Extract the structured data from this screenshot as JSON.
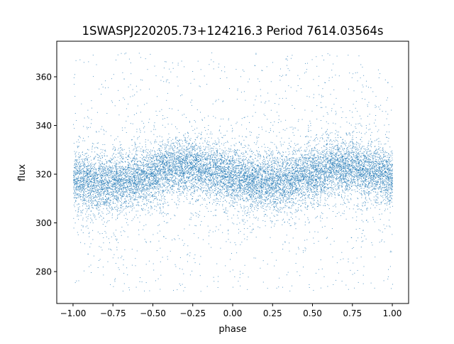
{
  "chart_data": {
    "type": "scatter",
    "title": "1SWASPJ220205.73+124216.3 Period 7614.03564s",
    "xlabel": "phase",
    "ylabel": "flux",
    "xlim": [
      -1.102,
      1.102
    ],
    "ylim": [
      266.9,
      374.6
    ],
    "xticks": [
      -1.0,
      -0.75,
      -0.5,
      -0.25,
      0.0,
      0.25,
      0.5,
      0.75,
      1.0
    ],
    "xtick_labels": [
      "−1.00",
      "−0.75",
      "−0.50",
      "−0.25",
      "0.00",
      "0.25",
      "0.50",
      "0.75",
      "1.00"
    ],
    "yticks": [
      280,
      300,
      320,
      340,
      360
    ],
    "ytick_labels": [
      "280",
      "300",
      "320",
      "340",
      "360"
    ],
    "grid": false,
    "legend": "none",
    "marker_color": "#1f77b4",
    "data_range": {
      "phase": [
        -1.0,
        1.0
      ],
      "flux": [
        272,
        370
      ]
    },
    "binned_trend": {
      "phase": [
        -1.0,
        -0.875,
        -0.75,
        -0.625,
        -0.5,
        -0.375,
        -0.25,
        -0.125,
        0.0,
        0.125,
        0.25,
        0.375,
        0.5,
        0.625,
        0.75,
        0.875,
        1.0
      ],
      "median_flux": [
        318.5,
        317,
        316.5,
        318,
        320.5,
        322.5,
        323,
        321.5,
        319,
        317,
        316.5,
        318,
        320.5,
        322.5,
        323,
        321,
        318.5
      ]
    },
    "core_scatter_sigma": 5.5,
    "outlier_fraction": 0.08
  }
}
